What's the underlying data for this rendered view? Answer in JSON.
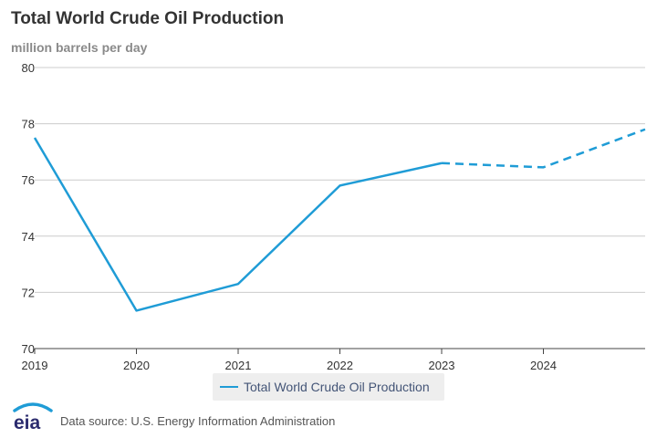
{
  "chart_data": {
    "type": "line",
    "title": "Total World Crude Oil Production",
    "ylabel": "million barrels per day",
    "xlabel": "",
    "x": [
      2019,
      2020,
      2021,
      2022,
      2023,
      2024,
      2025
    ],
    "x_tick_labels": [
      "2019",
      "2020",
      "2021",
      "2022",
      "2023",
      "2024"
    ],
    "y_ticks": [
      70,
      72,
      74,
      76,
      78,
      80
    ],
    "ylim": [
      70,
      80
    ],
    "xlim": [
      2019,
      2025
    ],
    "series": [
      {
        "name": "Total World Crude Oil Production",
        "color": "#1f9cd6",
        "values": [
          77.5,
          71.35,
          72.3,
          75.8,
          76.6,
          76.45,
          77.8
        ],
        "projected_from_index": 4
      }
    ],
    "grid": true,
    "legend_position": "bottom-center"
  },
  "footer": {
    "logo_text": "eia",
    "source": "Data source: U.S. Energy Information Administration"
  }
}
